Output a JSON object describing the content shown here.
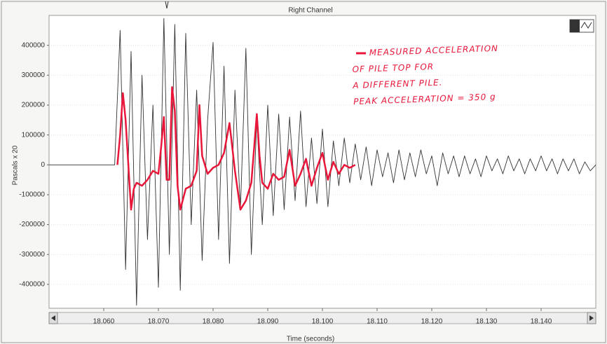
{
  "chart_data": {
    "type": "line",
    "title": "Right Channel",
    "xlabel": "Time (seconds)",
    "ylabel": "Pascals x 20",
    "annotations": [
      "MEASURED ACCELERATION",
      "OF PILE TOP FOR",
      "A DIFFERENT PILE.",
      "PEAK ACCELERATION = 350 g"
    ],
    "xlim": [
      18.05,
      18.15
    ],
    "xticks": [
      {
        "value": 18.06,
        "label": "18.060"
      },
      {
        "value": 18.07,
        "label": "18.070"
      },
      {
        "value": 18.08,
        "label": "18.080"
      },
      {
        "value": 18.09,
        "label": "18.090"
      },
      {
        "value": 18.1,
        "label": "18.100"
      },
      {
        "value": 18.11,
        "label": "18.110"
      },
      {
        "value": 18.12,
        "label": "18.120"
      },
      {
        "value": 18.13,
        "label": "18.130"
      },
      {
        "value": 18.14,
        "label": "18.140"
      }
    ],
    "ylim": [
      -480000,
      500000
    ],
    "yticks": [
      -400000,
      -300000,
      -200000,
      -100000,
      0,
      100000,
      200000,
      300000,
      400000
    ],
    "grid": true,
    "series": [
      {
        "color": "#333333",
        "x": [
          18.05,
          18.062,
          18.063,
          18.064,
          18.065,
          18.066,
          18.067,
          18.068,
          18.069,
          18.07,
          18.071,
          18.072,
          18.073,
          18.074,
          18.075,
          18.076,
          18.077,
          18.078,
          18.079,
          18.08,
          18.081,
          18.082,
          18.083,
          18.084,
          18.085,
          18.086,
          18.087,
          18.088,
          18.089,
          18.09,
          18.091,
          18.092,
          18.093,
          18.094,
          18.095,
          18.096,
          18.097,
          18.098,
          18.099,
          18.1,
          18.101,
          18.102,
          18.103,
          18.104,
          18.105,
          18.106,
          18.107,
          18.108,
          18.109,
          18.11,
          18.111,
          18.112,
          18.113,
          18.114,
          18.115,
          18.116,
          18.117,
          18.118,
          18.119,
          18.12,
          18.121,
          18.122,
          18.123,
          18.124,
          18.125,
          18.126,
          18.127,
          18.128,
          18.129,
          18.13,
          18.131,
          18.132,
          18.133,
          18.134,
          18.135,
          18.136,
          18.137,
          18.138,
          18.139,
          18.14,
          18.141,
          18.142,
          18.143,
          18.144,
          18.145,
          18.146,
          18.147,
          18.148,
          18.149,
          18.15
        ],
        "values": [
          0,
          0,
          450000,
          -350000,
          380000,
          -470000,
          300000,
          -250000,
          200000,
          -410000,
          490000,
          -300000,
          470000,
          -420000,
          440000,
          -200000,
          250000,
          -320000,
          150000,
          410000,
          -250000,
          330000,
          -330000,
          250000,
          -150000,
          390000,
          -300000,
          150000,
          -200000,
          200000,
          -170000,
          170000,
          -150000,
          160000,
          -120000,
          180000,
          -140000,
          90000,
          -130000,
          120000,
          -140000,
          80000,
          -70000,
          90000,
          -60000,
          70000,
          -50000,
          60000,
          -70000,
          50000,
          -40000,
          40000,
          -60000,
          50000,
          -50000,
          40000,
          -40000,
          50000,
          -30000,
          30000,
          -70000,
          40000,
          -30000,
          30000,
          -40000,
          30000,
          -30000,
          20000,
          -40000,
          30000,
          -20000,
          20000,
          -30000,
          30000,
          -20000,
          20000,
          -30000,
          20000,
          -20000,
          30000,
          -20000,
          20000,
          -30000,
          20000,
          -20000,
          20000,
          -30000,
          10000,
          -20000,
          0
        ]
      },
      {
        "color": "#e8173a",
        "x": [
          18.0625,
          18.063,
          18.0635,
          18.064,
          18.0645,
          18.065,
          18.0655,
          18.066,
          18.067,
          18.068,
          18.069,
          18.07,
          18.0705,
          18.071,
          18.0715,
          18.072,
          18.0725,
          18.073,
          18.0735,
          18.074,
          18.075,
          18.076,
          18.077,
          18.0775,
          18.078,
          18.079,
          18.08,
          18.081,
          18.082,
          18.083,
          18.084,
          18.085,
          18.086,
          18.087,
          18.088,
          18.0885,
          18.089,
          18.09,
          18.091,
          18.092,
          18.093,
          18.094,
          18.095,
          18.096,
          18.097,
          18.098,
          18.099,
          18.1,
          18.101,
          18.102,
          18.103,
          18.104,
          18.105,
          18.106
        ],
        "values": [
          0,
          100000,
          240000,
          150000,
          0,
          -150000,
          -80000,
          -60000,
          -70000,
          -50000,
          -20000,
          -30000,
          60000,
          160000,
          -50000,
          -50000,
          260000,
          180000,
          -70000,
          -150000,
          -80000,
          -70000,
          -20000,
          200000,
          30000,
          -30000,
          -10000,
          0,
          40000,
          140000,
          -20000,
          -150000,
          -120000,
          -60000,
          170000,
          30000,
          -60000,
          -80000,
          -30000,
          -50000,
          -40000,
          50000,
          -70000,
          -30000,
          20000,
          -70000,
          -10000,
          40000,
          -50000,
          10000,
          -30000,
          0,
          -10000,
          0
        ]
      }
    ]
  }
}
